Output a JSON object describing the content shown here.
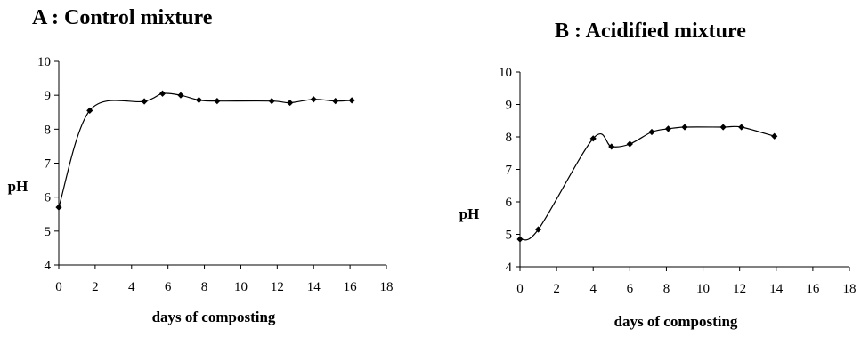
{
  "chart_data": [
    {
      "type": "line",
      "panel": "A",
      "title": "A : Control mixture",
      "xlabel": "days of composting",
      "ylabel": "pH",
      "xlim": [
        0,
        18
      ],
      "ylim": [
        4,
        10
      ],
      "xticks": [
        0,
        2,
        4,
        6,
        8,
        10,
        12,
        14,
        16,
        18
      ],
      "yticks": [
        4,
        5,
        6,
        7,
        8,
        9,
        10
      ],
      "grid": false,
      "legend": "none",
      "series": [
        {
          "x": [
            0,
            1.7,
            4.7,
            5.7,
            6.7,
            7.7,
            8.7,
            11.7,
            12.7,
            14,
            15.2,
            16.1
          ],
          "y": [
            5.7,
            8.55,
            8.82,
            9.05,
            9.0,
            8.86,
            8.83,
            8.83,
            8.78,
            8.88,
            8.83,
            8.85
          ]
        }
      ]
    },
    {
      "type": "line",
      "panel": "B",
      "title": "B : Acidified mixture",
      "xlabel": "days of composting",
      "ylabel": "pH",
      "xlim": [
        0,
        18
      ],
      "ylim": [
        4,
        10
      ],
      "xticks": [
        0,
        2,
        4,
        6,
        8,
        10,
        12,
        14,
        16,
        18
      ],
      "yticks": [
        4,
        5,
        6,
        7,
        8,
        9,
        10
      ],
      "grid": false,
      "legend": "none",
      "series": [
        {
          "x": [
            0,
            1,
            4,
            5,
            6,
            7.2,
            8.1,
            9,
            11.1,
            12.1,
            13.9
          ],
          "y": [
            4.85,
            5.15,
            7.95,
            7.7,
            7.78,
            8.15,
            8.25,
            8.3,
            8.3,
            8.3,
            8.02
          ]
        }
      ]
    }
  ]
}
